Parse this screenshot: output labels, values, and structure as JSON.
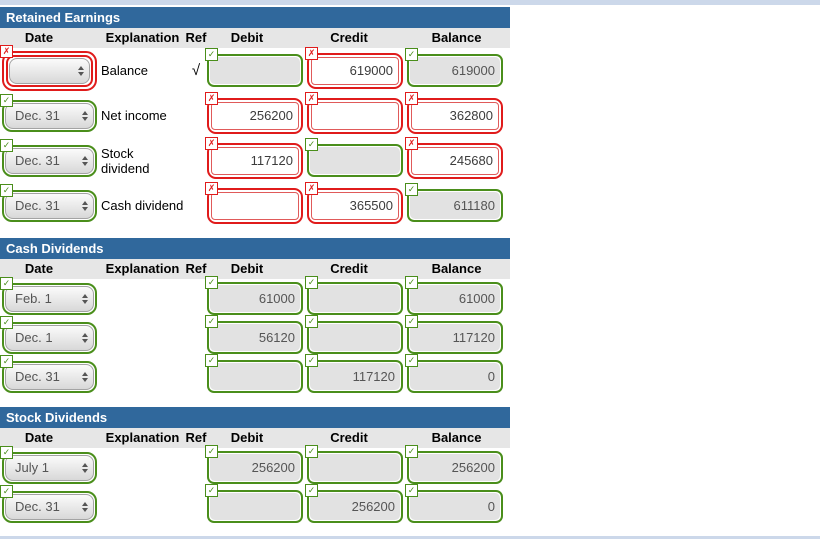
{
  "colors": {
    "section_header_blue": "#30689c",
    "column_header_gray": "#e6e6e6",
    "correct_green": "#4a8e1b",
    "incorrect_red": "#e01b1b",
    "disabled_field_bg": "#e2e2e2",
    "page_strip_blue": "#ccd8ea"
  },
  "icons": {
    "correct_badge": "check-icon",
    "incorrect_badge": "x-icon",
    "date_select": "up-down-arrows-icon"
  },
  "columns": [
    "Date",
    "Explanation",
    "Ref",
    "Debit",
    "Credit",
    "Balance"
  ],
  "sections": [
    {
      "title": "Retained Earnings",
      "rows": [
        {
          "date": {
            "value": "",
            "status": "incorrect"
          },
          "explanation": "Balance",
          "ref": "√",
          "debit": {
            "value": "",
            "status": "correct",
            "disabled": true
          },
          "credit": {
            "value": "619000",
            "status": "incorrect",
            "disabled": false
          },
          "balance": {
            "value": "619000",
            "status": "correct",
            "disabled": true
          }
        },
        {
          "date": {
            "value": "Dec. 31",
            "status": "correct"
          },
          "explanation": "Net income",
          "ref": "",
          "debit": {
            "value": "256200",
            "status": "incorrect",
            "disabled": false
          },
          "credit": {
            "value": "",
            "status": "incorrect",
            "disabled": false
          },
          "balance": {
            "value": "362800",
            "status": "incorrect",
            "disabled": false
          }
        },
        {
          "date": {
            "value": "Dec. 31",
            "status": "correct"
          },
          "explanation": "Stock dividend",
          "ref": "",
          "debit": {
            "value": "117120",
            "status": "incorrect",
            "disabled": false
          },
          "credit": {
            "value": "",
            "status": "correct",
            "disabled": true
          },
          "balance": {
            "value": "245680",
            "status": "incorrect",
            "disabled": false
          }
        },
        {
          "date": {
            "value": "Dec. 31",
            "status": "correct"
          },
          "explanation": "Cash dividend",
          "ref": "",
          "debit": {
            "value": "",
            "status": "incorrect",
            "disabled": false
          },
          "credit": {
            "value": "365500",
            "status": "incorrect",
            "disabled": false
          },
          "balance": {
            "value": "611180",
            "status": "correct",
            "disabled": true
          }
        }
      ]
    },
    {
      "title": "Cash Dividends",
      "rows": [
        {
          "date": {
            "value": "Feb. 1",
            "status": "correct"
          },
          "explanation": "",
          "ref": "",
          "debit": {
            "value": "61000",
            "status": "correct",
            "disabled": true
          },
          "credit": {
            "value": "",
            "status": "correct",
            "disabled": true
          },
          "balance": {
            "value": "61000",
            "status": "correct",
            "disabled": true
          }
        },
        {
          "date": {
            "value": "Dec. 1",
            "status": "correct"
          },
          "explanation": "",
          "ref": "",
          "debit": {
            "value": "56120",
            "status": "correct",
            "disabled": true
          },
          "credit": {
            "value": "",
            "status": "correct",
            "disabled": true
          },
          "balance": {
            "value": "117120",
            "status": "correct",
            "disabled": true
          }
        },
        {
          "date": {
            "value": "Dec. 31",
            "status": "correct"
          },
          "explanation": "",
          "ref": "",
          "debit": {
            "value": "",
            "status": "correct",
            "disabled": true
          },
          "credit": {
            "value": "117120",
            "status": "correct",
            "disabled": true
          },
          "balance": {
            "value": "0",
            "status": "correct",
            "disabled": true
          }
        }
      ]
    },
    {
      "title": "Stock Dividends",
      "rows": [
        {
          "date": {
            "value": "July 1",
            "status": "correct"
          },
          "explanation": "",
          "ref": "",
          "debit": {
            "value": "256200",
            "status": "correct",
            "disabled": true
          },
          "credit": {
            "value": "",
            "status": "correct",
            "disabled": true
          },
          "balance": {
            "value": "256200",
            "status": "correct",
            "disabled": true
          }
        },
        {
          "date": {
            "value": "Dec. 31",
            "status": "correct"
          },
          "explanation": "",
          "ref": "",
          "debit": {
            "value": "",
            "status": "correct",
            "disabled": true
          },
          "credit": {
            "value": "256200",
            "status": "correct",
            "disabled": true
          },
          "balance": {
            "value": "0",
            "status": "correct",
            "disabled": true
          }
        }
      ]
    }
  ]
}
